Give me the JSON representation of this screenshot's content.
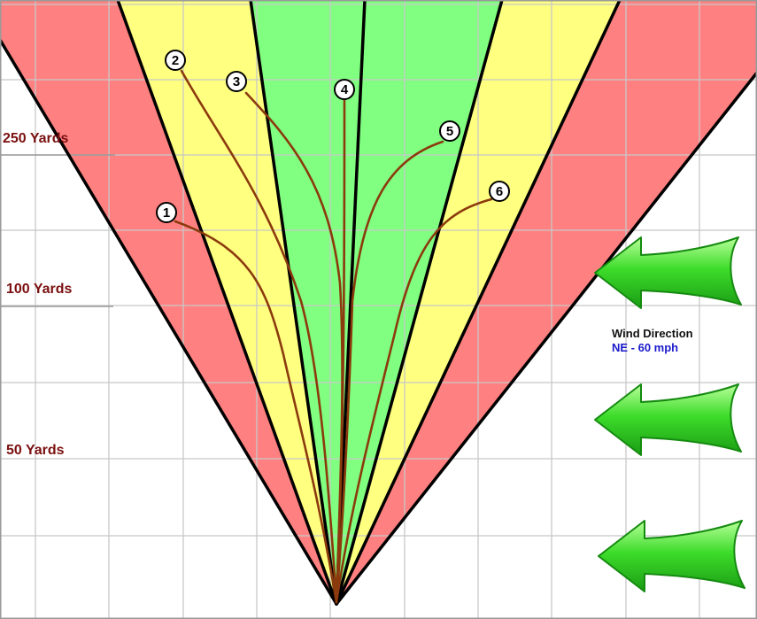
{
  "distance_markers": [
    {
      "label": "250 Yards"
    },
    {
      "label": "100 Yards"
    },
    {
      "label": "50 Yards"
    }
  ],
  "shots": [
    {
      "label": "1"
    },
    {
      "label": "2"
    },
    {
      "label": "3"
    },
    {
      "label": "4"
    },
    {
      "label": "5"
    },
    {
      "label": "6"
    }
  ],
  "wind": {
    "title": "Wind Direction",
    "value": "NE - 60 mph"
  },
  "colors": {
    "zone_outer": "#ff8080",
    "zone_middle": "#ffff80",
    "zone_center": "#80ff80",
    "trajectory": "#8b3a0e",
    "label_text": "#7a0f0f",
    "wind_value": "#1a1acc",
    "arrow": "#33cc33"
  }
}
